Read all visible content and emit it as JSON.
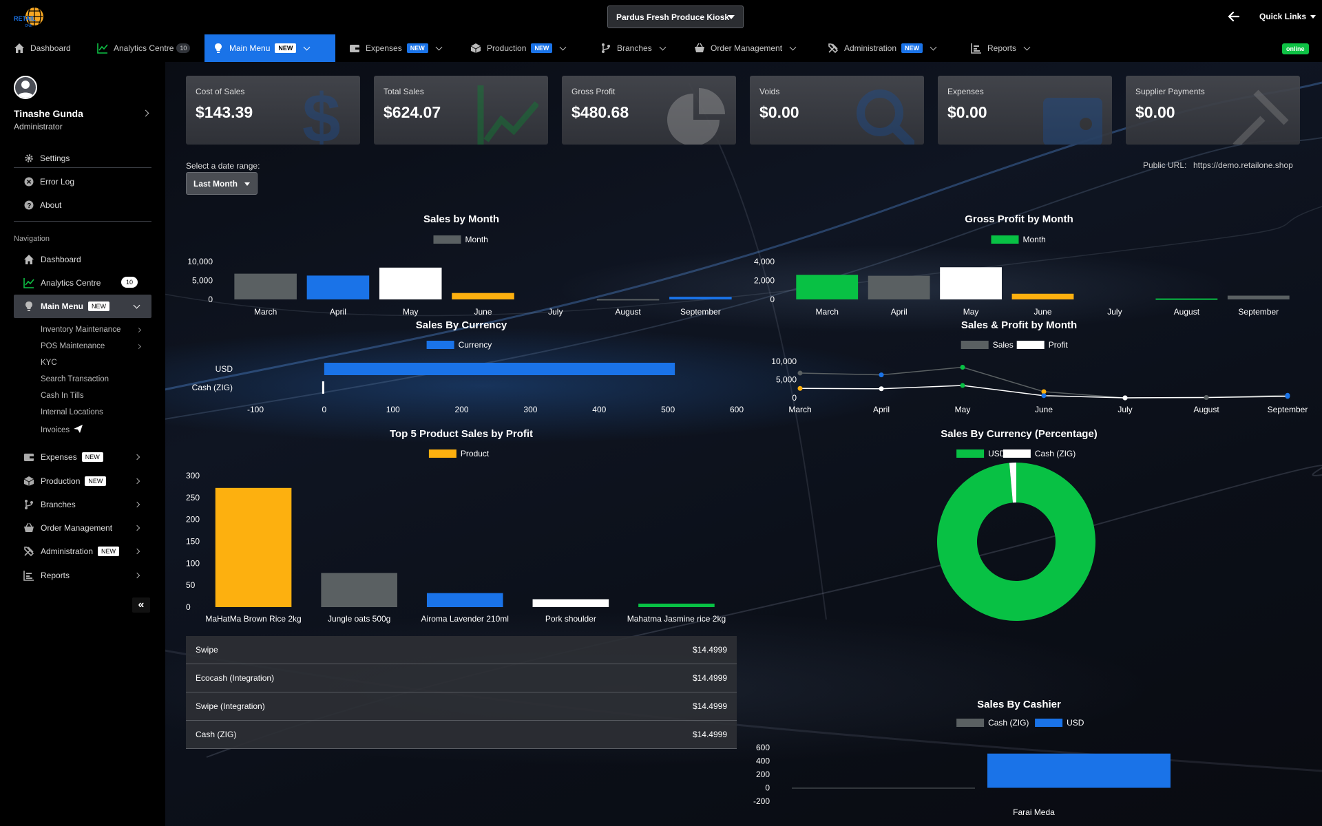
{
  "header": {
    "branch": "Pardus Fresh Produce Kiosk",
    "quick_links": "Quick Links",
    "status": "online"
  },
  "nav": {
    "dashboard": "Dashboard",
    "analytics": "Analytics Centre",
    "analytics_count": "10",
    "main_menu": "Main Menu",
    "expenses": "Expenses",
    "production": "Production",
    "branches": "Branches",
    "order_management": "Order Management",
    "administration": "Administration",
    "reports": "Reports",
    "new_badge": "NEW"
  },
  "sidebar": {
    "user_name": "Tinashe Gunda",
    "user_role": "Administrator",
    "settings": "Settings",
    "error_log": "Error Log",
    "about": "About",
    "navigation_label": "Navigation",
    "submenu": [
      "Inventory Maintenance",
      "POS Maintenance",
      "KYC",
      "Search Transaction",
      "Cash In Tills",
      "Internal Locations",
      "Invoices"
    ],
    "collapse": "«"
  },
  "cards": [
    {
      "label": "Cost of Sales",
      "value": "$143.39",
      "icon": "dollar-icon"
    },
    {
      "label": "Total Sales",
      "value": "$624.07",
      "icon": "line-chart-icon"
    },
    {
      "label": "Gross Profit",
      "value": "$480.68",
      "icon": "pie-chart-icon"
    },
    {
      "label": "Voids",
      "value": "$0.00",
      "icon": "search-icon"
    },
    {
      "label": "Expenses",
      "value": "$0.00",
      "icon": "wallet-icon"
    },
    {
      "label": "Supplier Payments",
      "value": "$0.00",
      "icon": "tools-icon"
    }
  ],
  "filters": {
    "date_label": "Select a date range:",
    "date_value": "Last Month",
    "public_url_label": "Public URL:",
    "public_url": "https://demo.retailone.shop"
  },
  "colors": {
    "gray": "#5a6062",
    "blue": "#1a73e8",
    "white": "#ffffff",
    "orange": "#fdb00f",
    "green": "#08c144"
  },
  "payments": [
    {
      "method": "Swipe",
      "amount": "$14.4999"
    },
    {
      "method": "Ecocash (Integration)",
      "amount": "$14.4999"
    },
    {
      "method": "Swipe (Integration)",
      "amount": "$14.4999"
    },
    {
      "method": "Cash (ZIG)",
      "amount": "$14.4999"
    }
  ],
  "chart_data": [
    {
      "id": "sales_by_month",
      "type": "bar",
      "title": "Sales by Month",
      "legend": [
        "Month"
      ],
      "legend_placement": "top",
      "categories": [
        "March",
        "April",
        "May",
        "June",
        "July",
        "August",
        "September"
      ],
      "values": [
        6800,
        6300,
        8400,
        1700,
        0,
        100,
        700
      ],
      "colors": [
        "#5a6062",
        "#1a73e8",
        "#ffffff",
        "#fdb00f",
        "#08c144",
        "#5a6062",
        "#1a73e8"
      ],
      "ylim": [
        0,
        10000
      ],
      "yticks": [
        "10,000",
        "5,000",
        "0"
      ]
    },
    {
      "id": "gross_profit_by_month",
      "type": "bar",
      "title": "Gross Profit by Month",
      "legend": [
        "Month"
      ],
      "legend_placement": "top",
      "categories": [
        "March",
        "April",
        "May",
        "June",
        "July",
        "August",
        "September"
      ],
      "values": [
        2600,
        2500,
        3400,
        600,
        0,
        100,
        400
      ],
      "colors": [
        "#08c144",
        "#5a6062",
        "#ffffff",
        "#fdb00f",
        "#1a73e8",
        "#08c144",
        "#5a6062"
      ],
      "ylim": [
        0,
        4000
      ],
      "yticks": [
        "4,000",
        "2,000",
        "0"
      ]
    },
    {
      "id": "sales_by_currency",
      "type": "bar",
      "orientation": "horizontal",
      "title": "Sales By Currency",
      "legend": [
        "Currency"
      ],
      "legend_placement": "top",
      "categories": [
        "USD",
        "Cash (ZIG)"
      ],
      "values": [
        510,
        -3
      ],
      "colors": [
        "#1a73e8",
        "#ffffff"
      ],
      "xlim": [
        -100,
        600
      ],
      "xticks": [
        "-100",
        "0",
        "100",
        "200",
        "300",
        "400",
        "500",
        "600"
      ]
    },
    {
      "id": "sales_profit_by_month",
      "type": "line",
      "title": "Sales & Profit by Month",
      "legend": [
        "Sales",
        "Profit"
      ],
      "legend_placement": "top",
      "categories": [
        "March",
        "April",
        "May",
        "June",
        "July",
        "August",
        "September"
      ],
      "ylim": [
        0,
        10000
      ],
      "yticks": [
        "10,000",
        "5,000",
        "0"
      ],
      "series": [
        {
          "name": "Sales",
          "color": "#5a6062",
          "values": [
            6800,
            6300,
            8400,
            1700,
            0,
            100,
            700
          ],
          "point_colors": [
            "#5a6062",
            "#1a73e8",
            "#08c144",
            "#fdb00f",
            "#ffffff",
            "#5a6062",
            "#1a73e8"
          ]
        },
        {
          "name": "Profit",
          "color": "#ffffff",
          "values": [
            2600,
            2500,
            3400,
            600,
            0,
            100,
            400
          ],
          "point_colors": [
            "#fdb00f",
            "#ffffff",
            "#08c144",
            "#1a73e8",
            "#ffffff",
            "#5a6062",
            "#1a73e8"
          ]
        }
      ]
    },
    {
      "id": "top5_products",
      "type": "bar",
      "title": "Top 5 Product Sales by Profit",
      "legend": [
        "Product"
      ],
      "legend_placement": "top",
      "categories": [
        "MaHatMa Brown Rice 2kg",
        "Jungle oats 500g",
        "Airoma Lavender 210ml",
        "Pork shoulder",
        "Mahatma Jasmine rice 2kg"
      ],
      "values": [
        272,
        78,
        32,
        18,
        8
      ],
      "colors": [
        "#fdb00f",
        "#5a6062",
        "#1a73e8",
        "#ffffff",
        "#08c144"
      ],
      "ylim": [
        0,
        300
      ],
      "yticks": [
        "300",
        "250",
        "200",
        "150",
        "100",
        "50",
        "0"
      ]
    },
    {
      "id": "sales_by_currency_pct",
      "type": "pie",
      "title": "Sales By Currency (Percentage)",
      "legend": [
        "USD",
        "Cash (ZIG)"
      ],
      "legend_placement": "top",
      "categories": [
        "USD",
        "Cash (ZIG)"
      ],
      "values": [
        98.6,
        1.4
      ],
      "colors": [
        "#08c144",
        "#ffffff"
      ]
    },
    {
      "id": "sales_by_cashier",
      "type": "bar",
      "title": "Sales By Cashier",
      "legend": [
        "Cash (ZIG)",
        "USD"
      ],
      "legend_placement": "top",
      "categories": [
        "Farai Meda"
      ],
      "series": [
        {
          "name": "Cash (ZIG)",
          "color": "#5a6062",
          "values": [
            -3
          ]
        },
        {
          "name": "USD",
          "color": "#1a73e8",
          "values": [
            510
          ]
        }
      ],
      "ylim": [
        -200,
        600
      ],
      "yticks": [
        "600",
        "400",
        "200",
        "0",
        "-200"
      ]
    }
  ]
}
